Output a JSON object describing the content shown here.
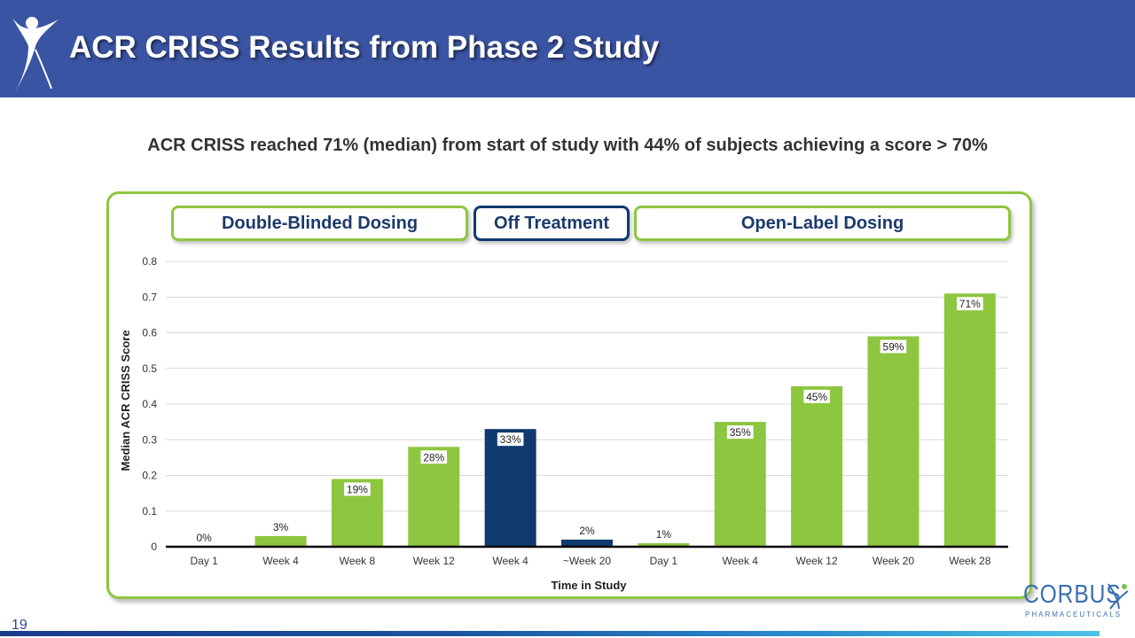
{
  "header": {
    "title": "ACR CRISS Results from Phase 2 Study"
  },
  "subtitle": "ACR CRISS reached 71%  (median) from start of study with 44%  of subjects achieving a score > 70%",
  "phases": [
    {
      "label": "Double-Blinded  Dosing"
    },
    {
      "label": "Off Treatment"
    },
    {
      "label": "Open-Label Dosing"
    }
  ],
  "colors": {
    "header": "#3a54a4",
    "green": "#8dc63f",
    "navy": "#0f3a6e",
    "phase_off_border": "#0f3a6e"
  },
  "chart_data": {
    "type": "bar",
    "categories": [
      "Day 1",
      "Week 4",
      "Week 8",
      "Week 12",
      "Week 4",
      "~Week 20",
      "Day 1",
      "Week 4",
      "Week 12",
      "Week 20",
      "Week 28"
    ],
    "values": [
      0,
      0.03,
      0.19,
      0.28,
      0.33,
      0.02,
      0.01,
      0.35,
      0.45,
      0.59,
      0.71
    ],
    "data_labels": [
      "0%",
      "3%",
      "19%",
      "28%",
      "33%",
      "2%",
      "1%",
      "35%",
      "45%",
      "59%",
      "71%"
    ],
    "bar_colors": [
      "#8dc63f",
      "#8dc63f",
      "#8dc63f",
      "#8dc63f",
      "#0f3a6e",
      "#0f3a6e",
      "#8dc63f",
      "#8dc63f",
      "#8dc63f",
      "#8dc63f",
      "#8dc63f"
    ],
    "xlabel": "Time in Study",
    "ylabel": "Median ACR CRISS Score",
    "ylim": [
      0,
      0.8
    ],
    "yticks": [
      0,
      0.1,
      0.2,
      0.3,
      0.4,
      0.5,
      0.6,
      0.7,
      0.8
    ],
    "ytick_labels": [
      "0",
      "0.1",
      "0.2",
      "0.3",
      "0.4",
      "0.5",
      "0.6",
      "0.7",
      "0.8"
    ],
    "grid": true
  },
  "footer": {
    "page_number": "19",
    "logo_name": "CORBUS",
    "logo_sub": "PHARMACEUTICALS"
  }
}
